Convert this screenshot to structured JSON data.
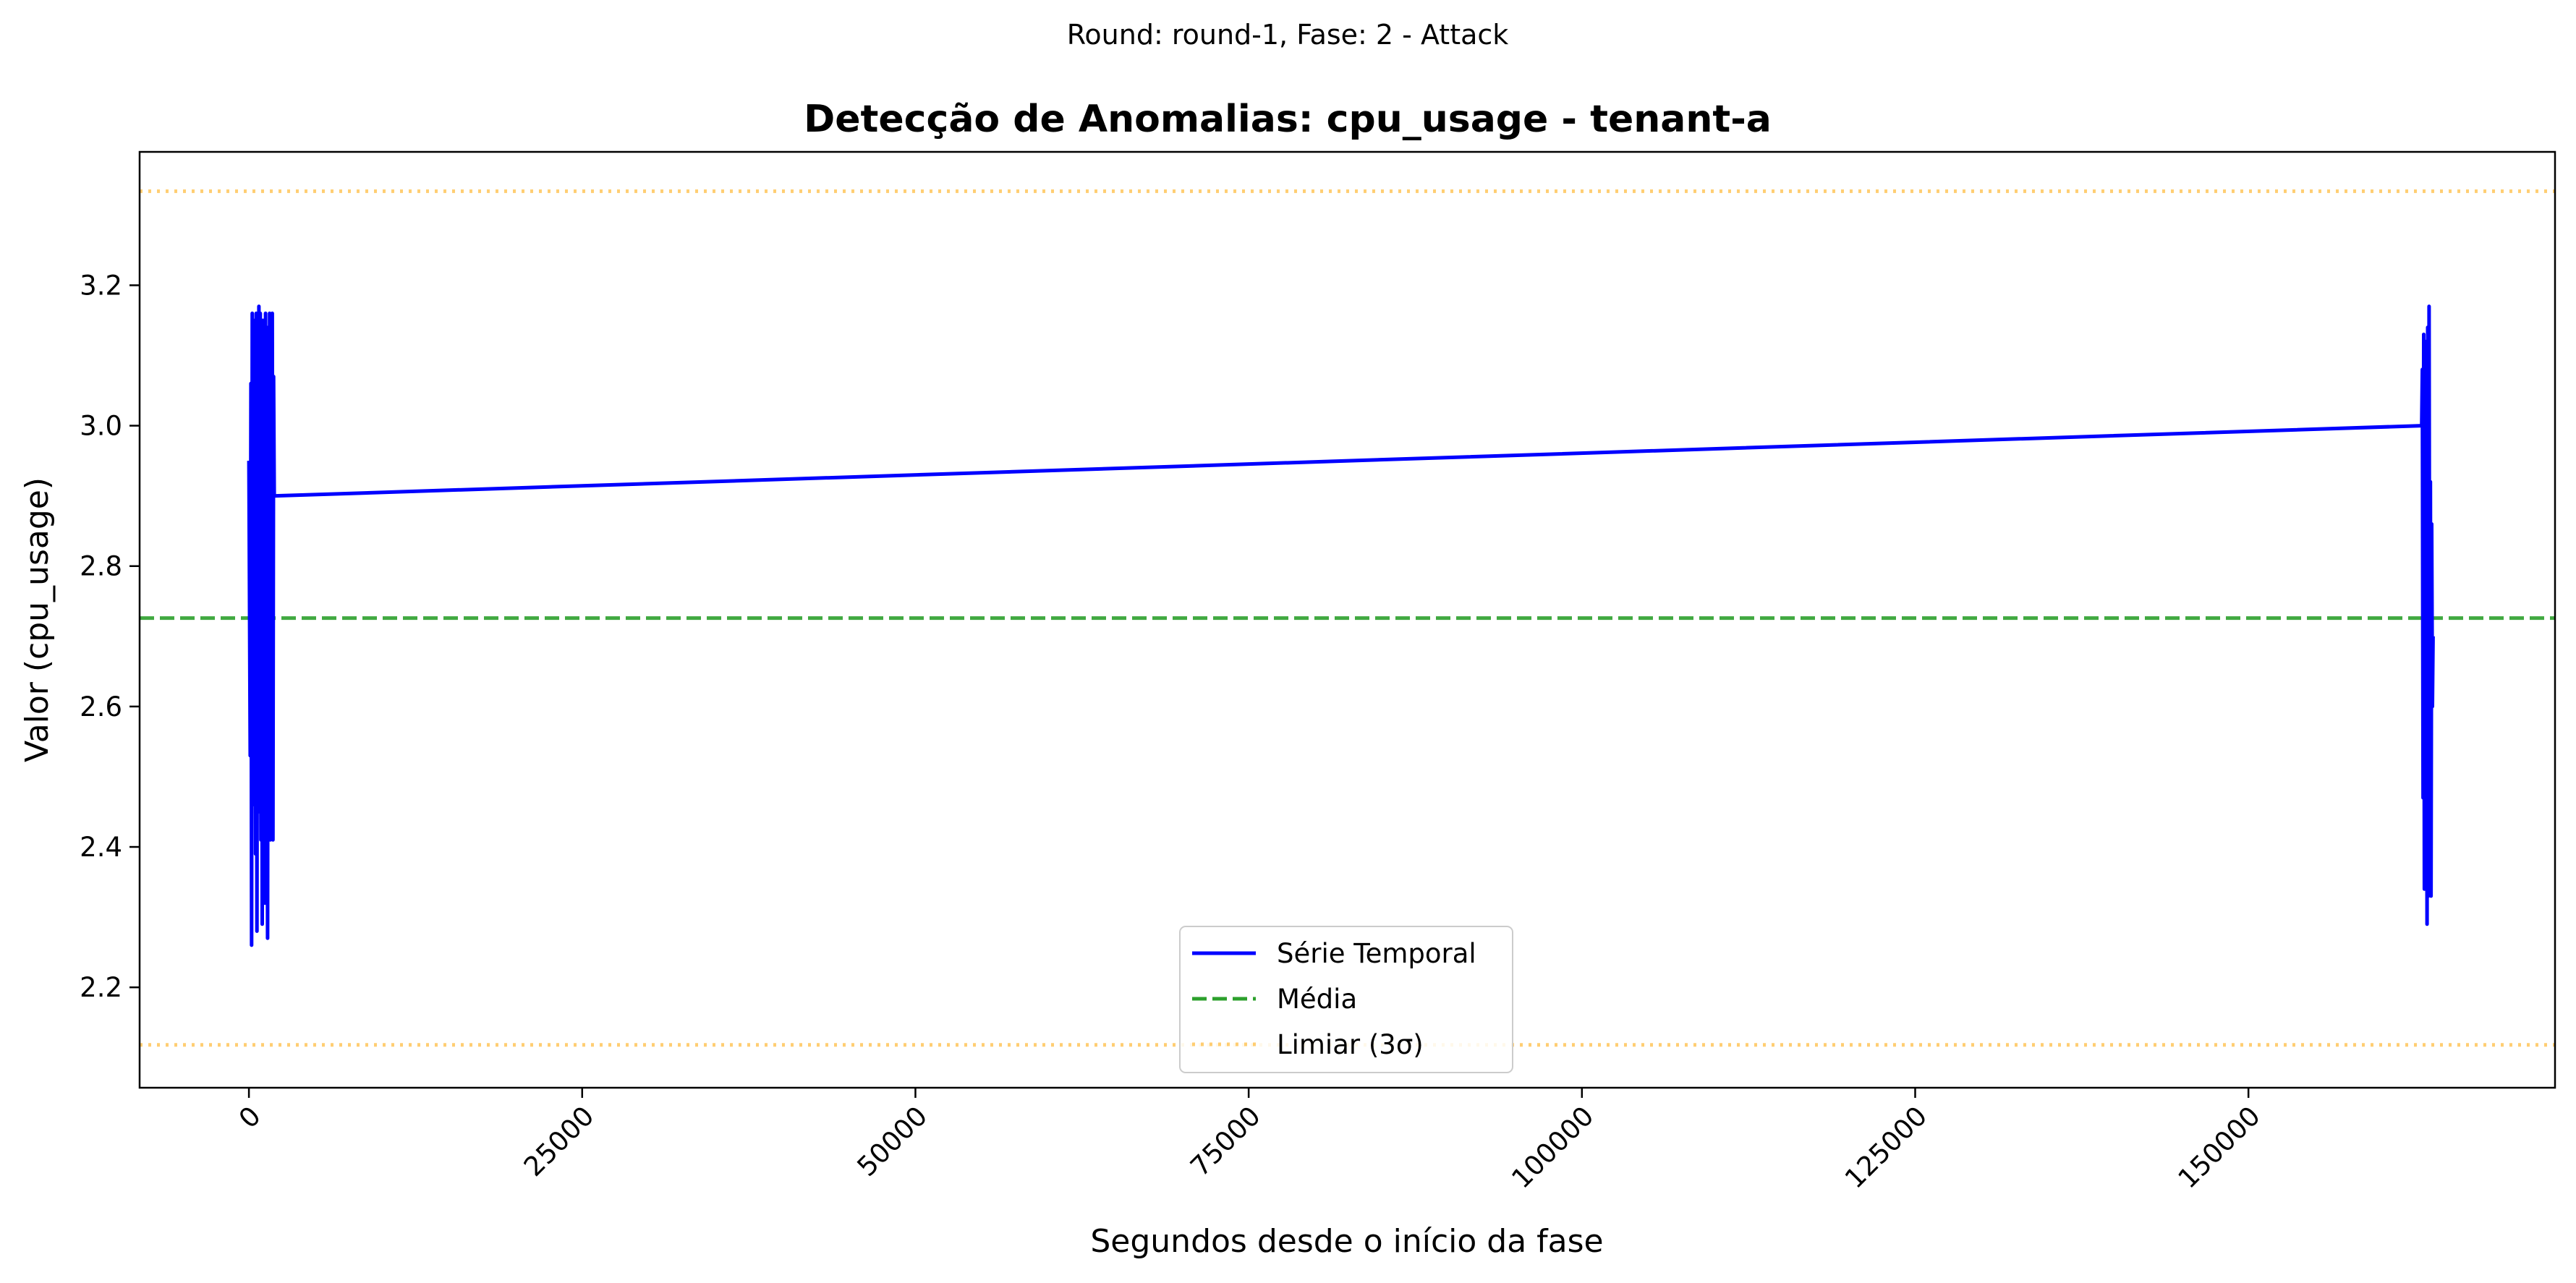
{
  "chart_data": {
    "type": "line",
    "suptitle": "Round: round-1, Fase: 2 - Attack",
    "title": "Detecção de Anomalias: cpu_usage - tenant-a",
    "xlabel": "Segundos desde o início da fase",
    "ylabel": "Valor (cpu_usage)",
    "xlim": [
      -8200,
      173000
    ],
    "ylim": [
      2.057,
      3.39
    ],
    "xticks": [
      0,
      25000,
      50000,
      75000,
      100000,
      125000,
      150000
    ],
    "xtick_labels": [
      "0",
      "25000",
      "50000",
      "75000",
      "100000",
      "125000",
      "150000"
    ],
    "xtick_rotation": 45,
    "yticks": [
      2.2,
      2.4,
      2.6,
      2.8,
      3.0,
      3.2
    ],
    "ytick_labels": [
      "2.2",
      "2.4",
      "2.6",
      "2.8",
      "3.0",
      "3.2"
    ],
    "grid": false,
    "legend_position": "bottom-center",
    "series": [
      {
        "name": "Série Temporal",
        "style": "solid",
        "color": "#0000ff",
        "x": [
          0,
          100,
          150,
          200,
          250,
          300,
          350,
          400,
          450,
          500,
          550,
          600,
          650,
          700,
          750,
          800,
          850,
          900,
          950,
          1000,
          1050,
          1100,
          1150,
          1200,
          1250,
          1300,
          1350,
          1400,
          1450,
          1500,
          1550,
          1600,
          1650,
          1700,
          1750,
          1800,
          1850,
          1900,
          163000,
          163050,
          163100,
          163150,
          163200,
          163250,
          163300,
          163350,
          163400,
          163450,
          163500,
          163550,
          163600,
          163650,
          163700,
          163750,
          163800,
          163850
        ],
        "y": [
          2.95,
          2.53,
          3.06,
          2.26,
          3.16,
          2.46,
          3.12,
          2.65,
          3.15,
          2.39,
          3.16,
          2.28,
          3.14,
          2.52,
          3.17,
          2.45,
          3.16,
          2.41,
          3.1,
          2.29,
          3.15,
          2.5,
          3.14,
          2.32,
          3.16,
          2.6,
          3.13,
          2.27,
          3.14,
          2.48,
          3.16,
          2.41,
          3.13,
          2.44,
          3.16,
          2.41,
          3.07,
          2.9,
          3.0,
          3.08,
          2.47,
          3.13,
          2.34,
          3.09,
          2.42,
          3.12,
          2.29,
          3.14,
          2.33,
          3.17,
          2.5,
          2.92,
          2.33,
          2.86,
          2.6,
          2.7
        ]
      },
      {
        "name": "Média",
        "style": "dashed",
        "color": "#2ca02c",
        "constant": 2.726
      },
      {
        "name": "Limiar (3σ)",
        "style": "dotted",
        "color": "#ffa500",
        "constants": [
          3.334,
          2.118
        ]
      }
    ]
  }
}
